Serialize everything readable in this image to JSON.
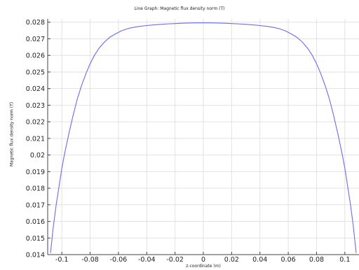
{
  "chart_data": {
    "type": "line",
    "title": "Line Graph: Magnetic flux density norm (T)",
    "xlabel": "z-coordinate (m)",
    "ylabel": "Magnetic flux density norm (T)",
    "xlim": [
      -0.11,
      0.11
    ],
    "ylim": [
      0.014,
      0.0282
    ],
    "xticks": [
      -0.1,
      -0.08,
      -0.06,
      -0.04,
      -0.02,
      0,
      0.02,
      0.04,
      0.06,
      0.08,
      0.1
    ],
    "xtick_labels": [
      "-0.1",
      "-0.08",
      "-0.06",
      "-0.04",
      "-0.02",
      "0",
      "0.02",
      "0.04",
      "0.06",
      "0.08",
      "0.1"
    ],
    "yticks": [
      0.014,
      0.015,
      0.016,
      0.017,
      0.018,
      0.019,
      0.02,
      0.021,
      0.022,
      0.023,
      0.024,
      0.025,
      0.026,
      0.027,
      0.028
    ],
    "ytick_labels": [
      "0.014",
      "0.015",
      "0.016",
      "0.017",
      "0.018",
      "0.019",
      "0.02",
      "0.021",
      "0.022",
      "0.023",
      "0.024",
      "0.025",
      "0.026",
      "0.027",
      "0.028"
    ],
    "grid": true,
    "line_color": "#6b6bf0",
    "series": [
      {
        "x": [
          -0.108,
          -0.106,
          -0.104,
          -0.102,
          -0.1,
          -0.098,
          -0.095,
          -0.092,
          -0.089,
          -0.086,
          -0.083,
          -0.08,
          -0.077,
          -0.074,
          -0.07,
          -0.066,
          -0.062,
          -0.058,
          -0.054,
          -0.05,
          -0.045,
          -0.04,
          -0.035,
          -0.03,
          -0.025,
          -0.02,
          -0.015,
          -0.01,
          -0.005,
          0,
          0.005,
          0.01,
          0.015,
          0.02,
          0.025,
          0.03,
          0.035,
          0.04,
          0.045,
          0.05,
          0.054,
          0.058,
          0.062,
          0.066,
          0.07,
          0.074,
          0.077,
          0.08,
          0.083,
          0.086,
          0.089,
          0.092,
          0.095,
          0.098,
          0.1,
          0.102,
          0.104,
          0.106,
          0.108
        ],
        "y": [
          0.0141,
          0.0157,
          0.017,
          0.0181,
          0.0192,
          0.0201,
          0.0213,
          0.0224,
          0.0234,
          0.0242,
          0.0249,
          0.0255,
          0.026,
          0.0264,
          0.0268,
          0.0271,
          0.0273,
          0.02748,
          0.0276,
          0.02768,
          0.02775,
          0.0278,
          0.02784,
          0.02787,
          0.0279,
          0.02792,
          0.02794,
          0.02795,
          0.02796,
          0.02796,
          0.02796,
          0.02795,
          0.02794,
          0.02792,
          0.0279,
          0.02787,
          0.02784,
          0.0278,
          0.02775,
          0.02768,
          0.0276,
          0.02748,
          0.0273,
          0.0271,
          0.0268,
          0.0264,
          0.026,
          0.0255,
          0.0249,
          0.0242,
          0.0234,
          0.0224,
          0.0213,
          0.0201,
          0.0192,
          0.0181,
          0.017,
          0.0157,
          0.0141
        ]
      }
    ]
  }
}
